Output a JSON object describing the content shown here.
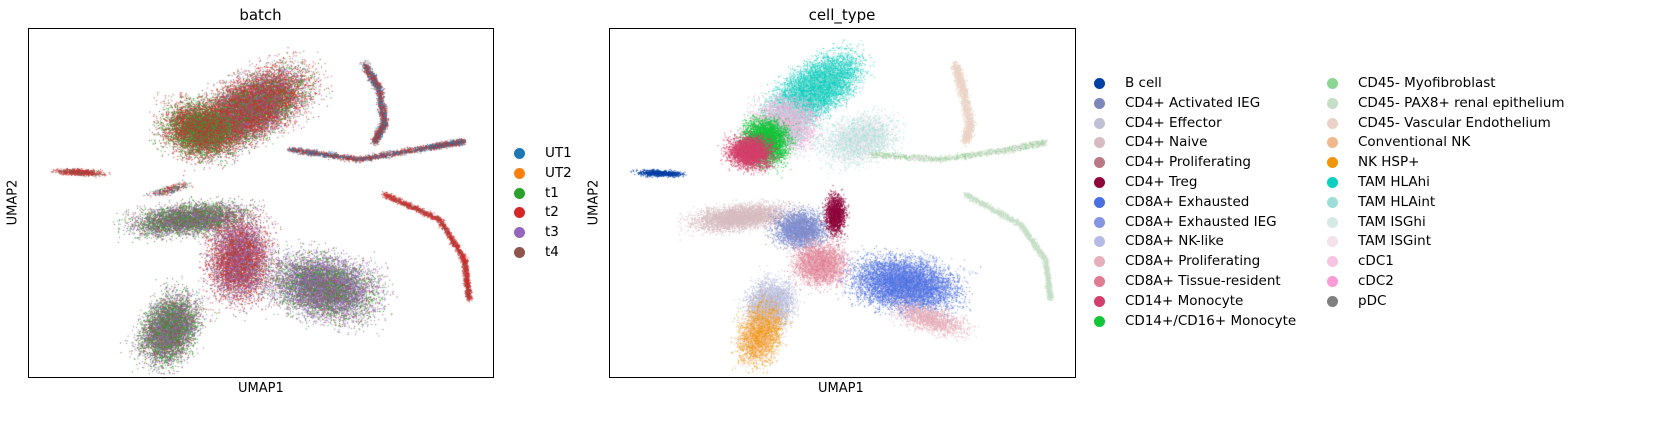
{
  "panels": [
    {
      "title": "batch",
      "xlabel": "UMAP1",
      "ylabel": "UMAP2",
      "legend": [
        {
          "label": "UT1",
          "color": "#1f77b4"
        },
        {
          "label": "UT2",
          "color": "#ff7f0e"
        },
        {
          "label": "t1",
          "color": "#2ca02c"
        },
        {
          "label": "t2",
          "color": "#d62728"
        },
        {
          "label": "t3",
          "color": "#9467bd"
        },
        {
          "label": "t4",
          "color": "#8c564b"
        }
      ]
    },
    {
      "title": "cell_type",
      "xlabel": "UMAP1",
      "ylabel": "UMAP2",
      "legend": [
        {
          "label": "B cell",
          "color": "#023fa5"
        },
        {
          "label": "CD4+ Activated IEG",
          "color": "#7d87b9"
        },
        {
          "label": "CD4+ Effector",
          "color": "#bec1d4"
        },
        {
          "label": "CD4+ Naive",
          "color": "#d6bcc0"
        },
        {
          "label": "CD4+ Proliferating",
          "color": "#bb7784"
        },
        {
          "label": "CD4+ Treg",
          "color": "#8e063b"
        },
        {
          "label": "CD8A+ Exhausted",
          "color": "#4a6fe3"
        },
        {
          "label": "CD8A+ Exhausted IEG",
          "color": "#8595e1"
        },
        {
          "label": "CD8A+ NK-like",
          "color": "#b5bbe3"
        },
        {
          "label": "CD8A+ Proliferating",
          "color": "#e6afb9"
        },
        {
          "label": "CD8A+ Tissue-resident",
          "color": "#e07b91"
        },
        {
          "label": "CD14+ Monocyte",
          "color": "#d33f6a"
        },
        {
          "label": "CD14+/CD16+ Monocyte",
          "color": "#11c638"
        },
        {
          "label": "CD45- Myofibroblast",
          "color": "#8dd593"
        },
        {
          "label": "CD45- PAX8+ renal epithelium",
          "color": "#c6dec7"
        },
        {
          "label": "CD45- Vascular Endothelium",
          "color": "#ead3c6"
        },
        {
          "label": "Conventional NK",
          "color": "#f0b98d"
        },
        {
          "label": "NK HSP+",
          "color": "#ef9708"
        },
        {
          "label": "TAM HLAhi",
          "color": "#0fcfc0"
        },
        {
          "label": "TAM HLAint",
          "color": "#9cded6"
        },
        {
          "label": "TAM ISGhi",
          "color": "#d5eae7"
        },
        {
          "label": "TAM ISGint",
          "color": "#f3e1eb"
        },
        {
          "label": "cDC1",
          "color": "#f6c4e1"
        },
        {
          "label": "cDC2",
          "color": "#f79cd4"
        },
        {
          "label": "pDC",
          "color": "#7f7f7f"
        }
      ]
    }
  ]
}
